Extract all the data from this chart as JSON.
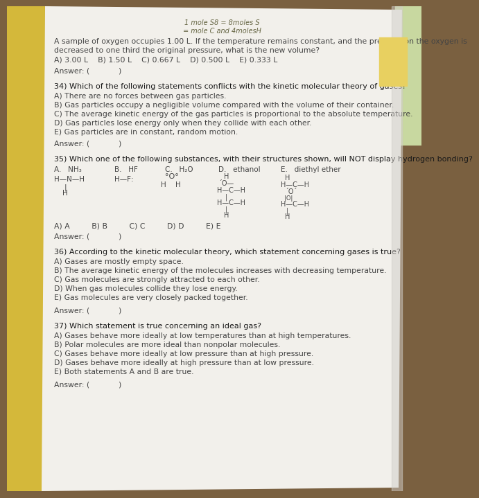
{
  "bg_wood": "#7a6040",
  "bg_yellow_book": "#d4b83a",
  "paper_color": "#e8e6e0",
  "paper_white": "#f2f0eb",
  "text_dark": "#1a1a1a",
  "text_gray": "#444444",
  "handwrite_color": "#555533",
  "note_top": "1 mole S8 = 8moles S",
  "note_top2": "= mole C and 4molesH",
  "q33_line1": "A sample of oxygen occupies 1.00 L. If the temperature remains constant, and the pressure on the oxygen is",
  "q33_line2": "decreased to one third the original pressure, what is the new volume?",
  "q33_choices": "A) 3.00 L    B) 1.50 L    C) 0.667 L    D) 0.500 L    E) 0.333 L",
  "q33_ans": "Answer: (            )",
  "q34_q": "34) Which of the following statements conflicts with the kinetic molecular theory of gases?",
  "q34_a": "A) There are no forces between gas particles.",
  "q34_b": "B) Gas particles occupy a negligible volume compared with the volume of their container.",
  "q34_c": "C) The average kinetic energy of the gas particles is proportional to the absolute temperature.",
  "q34_d": "D) Gas particles lose energy only when they collide with each other.",
  "q34_e": "E) Gas particles are in constant, random motion.",
  "q34_ans": "Answer: (            )",
  "q35_q": "35) Which one of the following substances, with their structures shown, will NOT display hydrogen bonding?",
  "q35_A_label": "A.   NH₃",
  "q35_B_label": "B.   HF",
  "q35_C_label": "C.   H₂O",
  "q35_D_label": "D.   ethanol",
  "q35_E_label": "E.   diethyl ether",
  "q35_choices": "A) A         B) B         C) C         D) D         E) E",
  "q35_ans": "Answer: (            )",
  "q36_q": "36) According to the kinetic molecular theory, which statement concerning gases is true?",
  "q36_a": "A) Gases are mostly empty space.",
  "q36_b": "B) The average kinetic energy of the molecules increases with decreasing temperature.",
  "q36_c": "C) Gas molecules are strongly attracted to each other.",
  "q36_d": "D) When gas molecules collide they lose energy.",
  "q36_e": "E) Gas molecules are very closely packed together.",
  "q36_ans": "Answer: (            )",
  "q37_q": "37) Which statement is true concerning an ideal gas?",
  "q37_a": "A) Gases behave more ideally at low temperatures than at high temperatures.",
  "q37_b": "B) Polar molecules are more ideal than nonpolar molecules.",
  "q37_c": "C) Gases behave more ideally at low pressure than at high pressure.",
  "q37_d": "D) Gases behave more ideally at high pressure than at low pressure.",
  "q37_e": "E) Both statements A and B are true.",
  "q37_ans": "Answer: (            )"
}
